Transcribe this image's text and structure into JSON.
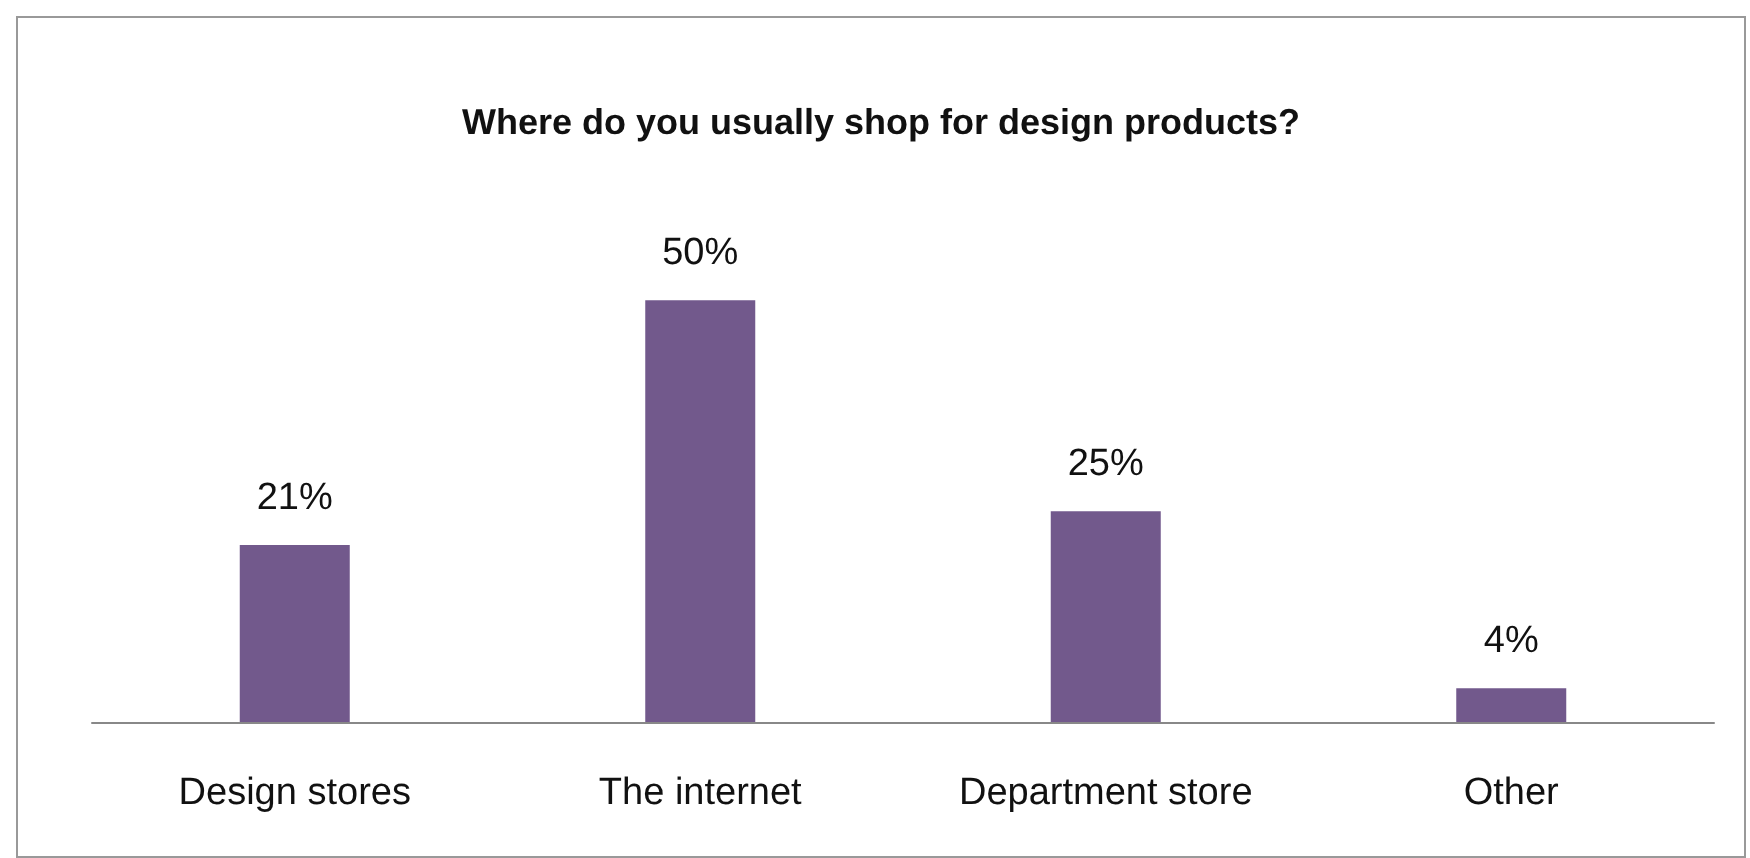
{
  "chart_data": {
    "type": "bar",
    "title": "Where do you usually shop for design products?",
    "categories": [
      "Design stores",
      "The internet",
      "Department store",
      "Other"
    ],
    "values": [
      21,
      50,
      25,
      4
    ],
    "value_labels": [
      "21%",
      "50%",
      "25%",
      "4%"
    ],
    "color": "#72598c"
  }
}
